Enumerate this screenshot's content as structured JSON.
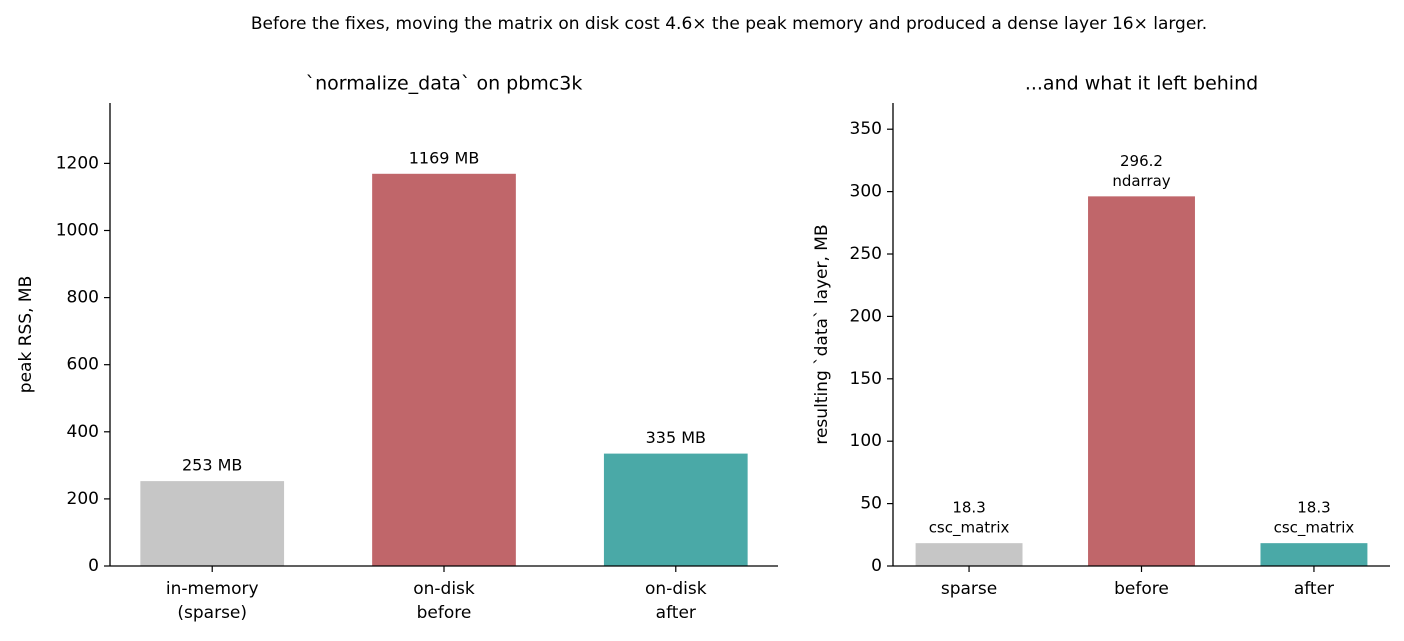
{
  "title": "Before the fixes, moving the matrix on disk cost 4.6× the peak memory and produced a dense layer 16× larger.",
  "chart_data": [
    {
      "type": "bar",
      "title": "`normalize_data` on pbmc3k",
      "ylabel": "peak RSS, MB",
      "categories": [
        [
          "in-memory",
          "(sparse)"
        ],
        [
          "on-disk",
          "before"
        ],
        [
          "on-disk",
          "after"
        ]
      ],
      "values": [
        253,
        1169,
        335
      ],
      "value_labels": [
        "253 MB",
        "1169 MB",
        "335 MB"
      ],
      "colors": [
        "#c6c6c6",
        "#c0666a",
        "#4aa9a7"
      ],
      "ylim": [
        0,
        1380
      ],
      "yticks": [
        0,
        200,
        400,
        600,
        800,
        1000,
        1200
      ]
    },
    {
      "type": "bar",
      "title": "...and what it left behind",
      "ylabel": "resulting `data` layer, MB",
      "categories": [
        [
          "sparse"
        ],
        [
          "before"
        ],
        [
          "after"
        ]
      ],
      "values": [
        18.3,
        296.2,
        18.3
      ],
      "annotations": [
        "csc_matrix",
        "ndarray",
        "csc_matrix"
      ],
      "colors": [
        "#c6c6c6",
        "#c0666a",
        "#4aa9a7"
      ],
      "ylim": [
        0,
        371
      ],
      "yticks": [
        0,
        50,
        100,
        150,
        200,
        250,
        300,
        350
      ]
    }
  ]
}
